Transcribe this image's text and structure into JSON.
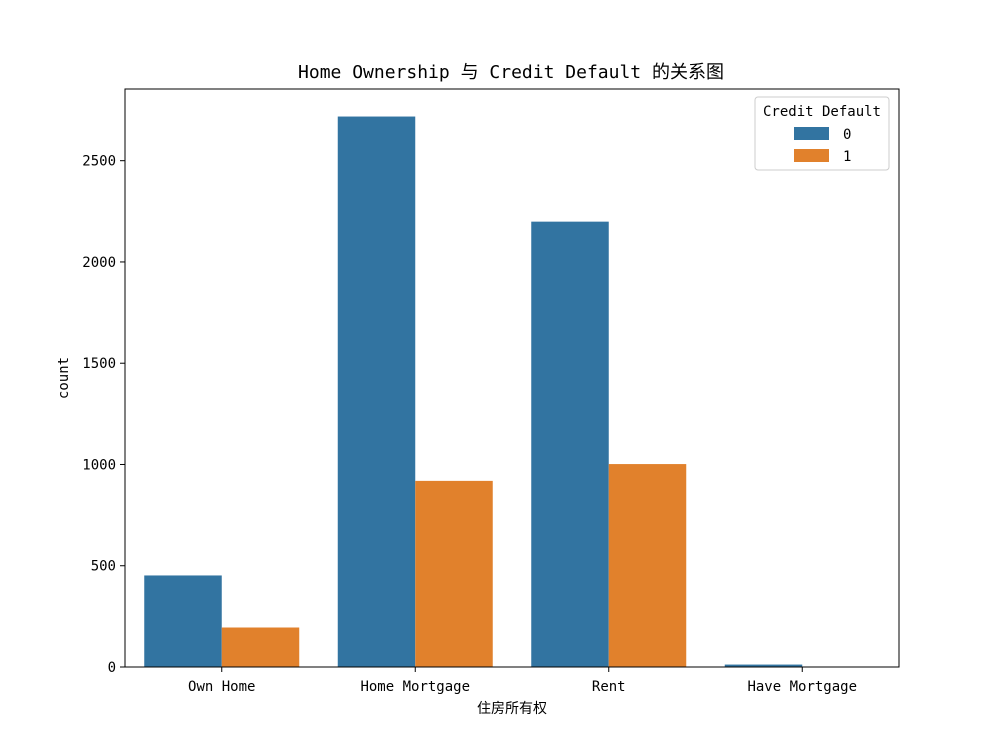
{
  "chart_data": {
    "type": "bar",
    "title": "Home Ownership 与 Credit Default 的关系图",
    "xlabel": "住房所有权",
    "ylabel": "count",
    "categories": [
      "Own Home",
      "Home Mortgage",
      "Rent",
      "Have Mortgage"
    ],
    "series": [
      {
        "name": "0",
        "values": [
          452,
          2718,
          2199,
          12
        ],
        "color": "#3274a1"
      },
      {
        "name": "1",
        "values": [
          195,
          919,
          1002,
          2
        ],
        "color": "#e1812c"
      }
    ],
    "yticks": [
      0,
      500,
      1000,
      1500,
      2000,
      2500
    ],
    "ylim": [
      0,
      2854
    ],
    "grid": false,
    "legend": {
      "title": "Credit Default",
      "placement": "upper right"
    }
  }
}
